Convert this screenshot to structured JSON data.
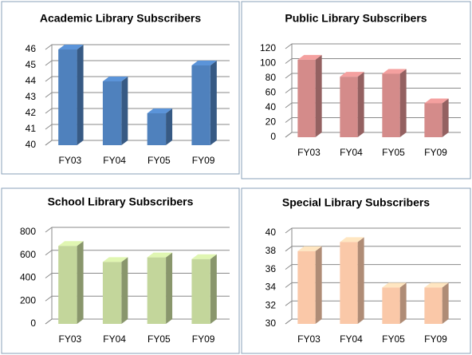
{
  "chart_data": [
    {
      "type": "bar",
      "title": "Academic Library Subscribers",
      "categories": [
        "FY03",
        "FY04",
        "FY05",
        "FY09"
      ],
      "values": [
        46,
        44,
        42,
        45
      ],
      "color": "#4f81bd",
      "ylim": [
        40,
        46
      ],
      "yticks": [
        40,
        41,
        42,
        43,
        44,
        45,
        46
      ],
      "grid": true
    },
    {
      "type": "bar",
      "title": "Public Library Subscribers",
      "categories": [
        "FY03",
        "FY04",
        "FY05",
        "FY09"
      ],
      "values": [
        105,
        82,
        86,
        46
      ],
      "color": "#d48b8a",
      "ylim": [
        0,
        120
      ],
      "yticks": [
        0,
        20,
        40,
        60,
        80,
        100,
        120
      ],
      "grid": true
    },
    {
      "type": "bar",
      "title": "School Library Subscribers",
      "categories": [
        "FY03",
        "FY04",
        "FY05",
        "FY09"
      ],
      "values": [
        680,
        540,
        580,
        565
      ],
      "color": "#c3d69b",
      "ylim": [
        0,
        800
      ],
      "yticks": [
        0,
        200,
        400,
        600,
        800
      ],
      "grid": true
    },
    {
      "type": "bar",
      "title": "Special Library Subscribers",
      "categories": [
        "FY03",
        "FY04",
        "FY05",
        "FY09"
      ],
      "values": [
        38,
        39,
        34,
        34
      ],
      "color": "#fac8a8",
      "ylim": [
        30,
        40
      ],
      "yticks": [
        30,
        32,
        34,
        36,
        38,
        40
      ],
      "grid": true
    }
  ]
}
